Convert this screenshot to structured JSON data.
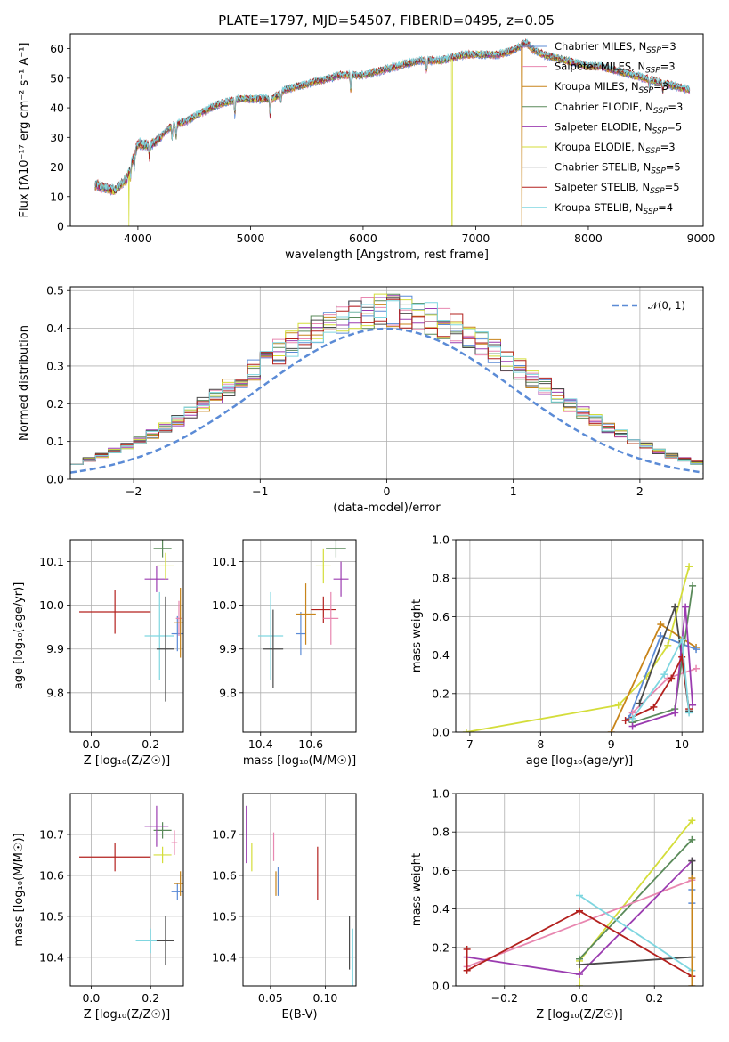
{
  "page_title": "PLATE=1797, MJD=54507, FIBERID=0495, z=0.05",
  "colors": {
    "c1": "#5b8bd6",
    "c2": "#e887b0",
    "c3": "#c8841a",
    "c4": "#5a8a5a",
    "c5": "#9b3cb0",
    "c6": "#d4dd3a",
    "c7": "#4a4a4a",
    "c8": "#b3211e",
    "c9": "#7fd6e0"
  },
  "chart_data": [
    {
      "id": "spectrum",
      "type": "line",
      "title": "PLATE=1797, MJD=54507, FIBERID=0495, z=0.05",
      "xlabel": "wavelength [Angstrom, rest frame]",
      "ylabel": "Flux [fλ10⁻¹⁷ erg cm⁻² s⁻¹ A⁻¹]",
      "xlim": [
        3400,
        9020
      ],
      "ylim": [
        0,
        65
      ],
      "xticks": [
        4000,
        5000,
        6000,
        7000,
        8000,
        9000
      ],
      "yticks": [
        0,
        10,
        20,
        30,
        40,
        50,
        60
      ],
      "grid": false,
      "legend_position": "top-right",
      "legend": [
        {
          "label": "Chabrier MILES, N",
          "sub": "SSP",
          "suffix": "=3",
          "color_key": "c1"
        },
        {
          "label": "Salpeter MILES, N",
          "sub": "SSP",
          "suffix": "=3",
          "color_key": "c2"
        },
        {
          "label": "Kroupa MILES, N",
          "sub": "SSP",
          "suffix": "=3",
          "color_key": "c3"
        },
        {
          "label": "Chabrier ELODIE, N",
          "sub": "SSP",
          "suffix": "=3",
          "color_key": "c4"
        },
        {
          "label": "Salpeter ELODIE, N",
          "sub": "SSP",
          "suffix": "=5",
          "color_key": "c5"
        },
        {
          "label": "Kroupa ELODIE, N",
          "sub": "SSP",
          "suffix": "=3",
          "color_key": "c6"
        },
        {
          "label": "Chabrier STELIB, N",
          "sub": "SSP",
          "suffix": "=5",
          "color_key": "c7"
        },
        {
          "label": "Salpeter STELIB, N",
          "sub": "SSP",
          "suffix": "=5",
          "color_key": "c8"
        },
        {
          "label": "Kroupa STELIB, N",
          "sub": "SSP",
          "suffix": "=4",
          "color_key": "c9"
        }
      ],
      "continuum": [
        [
          3620,
          14
        ],
        [
          3700,
          13
        ],
        [
          3800,
          12
        ],
        [
          3900,
          16
        ],
        [
          3950,
          22
        ],
        [
          4000,
          28
        ],
        [
          4100,
          27
        ],
        [
          4200,
          30
        ],
        [
          4300,
          34
        ],
        [
          4400,
          35
        ],
        [
          4500,
          37
        ],
        [
          4600,
          39
        ],
        [
          4700,
          41
        ],
        [
          4800,
          42
        ],
        [
          4900,
          43
        ],
        [
          5000,
          43
        ],
        [
          5100,
          43
        ],
        [
          5200,
          43
        ],
        [
          5300,
          46
        ],
        [
          5400,
          47
        ],
        [
          5500,
          48
        ],
        [
          5600,
          49
        ],
        [
          5700,
          50
        ],
        [
          5800,
          51
        ],
        [
          5900,
          51
        ],
        [
          6000,
          51
        ],
        [
          6100,
          52
        ],
        [
          6200,
          53
        ],
        [
          6300,
          54
        ],
        [
          6400,
          55
        ],
        [
          6500,
          56
        ],
        [
          6600,
          56
        ],
        [
          6700,
          56
        ],
        [
          6800,
          57
        ],
        [
          6900,
          58
        ],
        [
          7000,
          58
        ],
        [
          7100,
          58
        ],
        [
          7200,
          58
        ],
        [
          7300,
          59
        ],
        [
          7400,
          61
        ],
        [
          7450,
          62
        ],
        [
          7500,
          60
        ],
        [
          7600,
          58
        ],
        [
          7700,
          57
        ],
        [
          7800,
          56
        ],
        [
          7900,
          55
        ],
        [
          8000,
          54
        ],
        [
          8100,
          54
        ],
        [
          8200,
          53
        ],
        [
          8300,
          52
        ],
        [
          8400,
          51
        ],
        [
          8500,
          50
        ],
        [
          8600,
          49
        ],
        [
          8700,
          48
        ],
        [
          8800,
          47
        ],
        [
          8900,
          46
        ]
      ],
      "absorption_features": [
        [
          3934,
          4
        ],
        [
          3968,
          4
        ],
        [
          4102,
          4
        ],
        [
          4304,
          5
        ],
        [
          4340,
          4
        ],
        [
          4861,
          5
        ],
        [
          5175,
          6
        ],
        [
          5270,
          3
        ],
        [
          5890,
          5
        ],
        [
          6563,
          4
        ],
        [
          8542,
          3
        ],
        [
          8662,
          3
        ]
      ],
      "dropouts": [
        {
          "x": 3920,
          "color_key": "c6",
          "to": 0
        },
        {
          "x": 6790,
          "color_key": "c6",
          "to": 0
        },
        {
          "x": 7410,
          "color_key": "c3",
          "to": 0
        }
      ]
    },
    {
      "id": "residuals",
      "type": "histogram",
      "xlabel": "(data-model)/error",
      "ylabel": "Normed distribution",
      "xlim": [
        -2.5,
        2.5
      ],
      "ylim": [
        0,
        0.51
      ],
      "xticks": [
        -2,
        -1,
        0,
        1,
        2
      ],
      "yticks": [
        0.0,
        0.1,
        0.2,
        0.3,
        0.4,
        0.5
      ],
      "grid": true,
      "legend_position": "top-right",
      "legend": [
        {
          "label": "𝒩(0, 1)",
          "color_key": "c1",
          "dashed": true
        }
      ],
      "bin_width": 0.1
    },
    {
      "id": "age-vs-z",
      "type": "errorbar",
      "xlabel": "Z [log₁₀(Z/Z☉)]",
      "ylabel": "age  [log₁₀(age/yr)]",
      "xlim": [
        -0.07,
        0.31
      ],
      "ylim": [
        9.71,
        10.15
      ],
      "xticks": [
        0.0,
        0.2
      ],
      "yticks": [
        9.8,
        9.9,
        10.0,
        10.1
      ],
      "grid": true,
      "points": [
        {
          "color_key": "c8",
          "x": 0.08,
          "xerr": 0.12,
          "y": 9.985,
          "yerr": 0.05
        },
        {
          "color_key": "c9",
          "x": 0.23,
          "xerr": 0.05,
          "y": 9.93,
          "yerr": 0.1
        },
        {
          "color_key": "c7",
          "x": 0.25,
          "xerr": 0.03,
          "y": 9.9,
          "yerr": 0.12
        },
        {
          "color_key": "c1",
          "x": 0.29,
          "xerr": 0.02,
          "y": 9.935,
          "yerr": 0.04
        },
        {
          "color_key": "c2",
          "x": 0.295,
          "xerr": 0.01,
          "y": 9.97,
          "yerr": 0.04
        },
        {
          "color_key": "c3",
          "x": 0.3,
          "xerr": 0.02,
          "y": 9.96,
          "yerr": 0.08
        },
        {
          "color_key": "c5",
          "x": 0.22,
          "xerr": 0.04,
          "y": 10.06,
          "yerr": 0.03
        },
        {
          "color_key": "c6",
          "x": 0.25,
          "xerr": 0.03,
          "y": 10.09,
          "yerr": 0.03
        },
        {
          "color_key": "c4",
          "x": 0.24,
          "xerr": 0.03,
          "y": 10.13,
          "yerr": 0.02
        }
      ]
    },
    {
      "id": "age-vs-mass",
      "type": "errorbar",
      "xlabel": "mass [log₁₀(M/M☉)]",
      "ylabel": "",
      "xlim": [
        10.33,
        10.78
      ],
      "ylim": [
        9.71,
        10.15
      ],
      "xticks": [
        10.4,
        10.6
      ],
      "yticks": [
        9.8,
        9.9,
        10.0,
        10.1
      ],
      "grid": true,
      "points": [
        {
          "color_key": "c9",
          "x": 10.44,
          "xerr": 0.05,
          "y": 9.93,
          "yerr": 0.1
        },
        {
          "color_key": "c7",
          "x": 10.45,
          "xerr": 0.04,
          "y": 9.9,
          "yerr": 0.09
        },
        {
          "color_key": "c1",
          "x": 10.56,
          "xerr": 0.02,
          "y": 9.935,
          "yerr": 0.05
        },
        {
          "color_key": "c3",
          "x": 10.58,
          "xerr": 0.04,
          "y": 9.98,
          "yerr": 0.07
        },
        {
          "color_key": "c8",
          "x": 10.65,
          "xerr": 0.05,
          "y": 9.99,
          "yerr": 0.03
        },
        {
          "color_key": "c2",
          "x": 10.68,
          "xerr": 0.03,
          "y": 9.97,
          "yerr": 0.06
        },
        {
          "color_key": "c6",
          "x": 10.65,
          "xerr": 0.03,
          "y": 10.09,
          "yerr": 0.04
        },
        {
          "color_key": "c4",
          "x": 10.7,
          "xerr": 0.04,
          "y": 10.13,
          "yerr": 0.02
        },
        {
          "color_key": "c5",
          "x": 10.72,
          "xerr": 0.03,
          "y": 10.06,
          "yerr": 0.04
        }
      ]
    },
    {
      "id": "weight-vs-age",
      "type": "line",
      "xlabel": "age  [log₁₀(age/yr)]",
      "ylabel": "mass weight",
      "xlim": [
        6.8,
        10.3
      ],
      "ylim": [
        0,
        1.0
      ],
      "xticks": [
        7,
        8,
        9,
        10
      ],
      "yticks": [
        0.0,
        0.2,
        0.4,
        0.6,
        0.8,
        1.0
      ],
      "grid": true,
      "series": [
        {
          "color_key": "c6",
          "points": [
            [
              6.95,
              0.0
            ],
            [
              9.1,
              0.14
            ],
            [
              9.5,
              0.29
            ],
            [
              9.8,
              0.45
            ],
            [
              10.1,
              0.86
            ]
          ]
        },
        {
          "color_key": "c3",
          "points": [
            [
              9.0,
              0.0
            ],
            [
              9.7,
              0.56
            ],
            [
              10.2,
              0.44
            ]
          ]
        },
        {
          "color_key": "c1",
          "points": [
            [
              9.25,
              0.07
            ],
            [
              9.7,
              0.5
            ],
            [
              10.2,
              0.43
            ]
          ]
        },
        {
          "color_key": "c2",
          "points": [
            [
              9.3,
              0.1
            ],
            [
              9.8,
              0.28
            ],
            [
              10.2,
              0.33
            ]
          ]
        },
        {
          "color_key": "c4",
          "points": [
            [
              9.3,
              0.05
            ],
            [
              9.9,
              0.12
            ],
            [
              10.15,
              0.76
            ]
          ]
        },
        {
          "color_key": "c7",
          "points": [
            [
              9.4,
              0.15
            ],
            [
              9.9,
              0.65
            ],
            [
              10.1,
              0.11
            ]
          ]
        },
        {
          "color_key": "c5",
          "points": [
            [
              9.3,
              0.03
            ],
            [
              9.9,
              0.1
            ],
            [
              10.05,
              0.65
            ],
            [
              10.15,
              0.14
            ]
          ]
        },
        {
          "color_key": "c8",
          "points": [
            [
              9.2,
              0.06
            ],
            [
              9.6,
              0.13
            ],
            [
              9.85,
              0.28
            ],
            [
              10.0,
              0.39
            ],
            [
              10.1,
              0.12
            ]
          ]
        },
        {
          "color_key": "c9",
          "points": [
            [
              9.3,
              0.07
            ],
            [
              9.75,
              0.3
            ],
            [
              10.0,
              0.48
            ],
            [
              10.1,
              0.1
            ]
          ]
        }
      ]
    },
    {
      "id": "mass-vs-z",
      "type": "errorbar",
      "xlabel": "Z [log₁₀(Z/Z☉)]",
      "ylabel": "mass [log₁₀(M/M☉)]",
      "xlim": [
        -0.07,
        0.31
      ],
      "ylim": [
        10.33,
        10.8
      ],
      "xticks": [
        0.0,
        0.2
      ],
      "yticks": [
        10.4,
        10.5,
        10.6,
        10.7
      ],
      "grid": true,
      "points": [
        {
          "color_key": "c8",
          "x": 0.08,
          "xerr": 0.12,
          "y": 10.645,
          "yerr": 0.035
        },
        {
          "color_key": "c9",
          "x": 0.2,
          "xerr": 0.05,
          "y": 10.44,
          "yerr": 0.03
        },
        {
          "color_key": "c7",
          "x": 0.25,
          "xerr": 0.03,
          "y": 10.44,
          "yerr": 0.06
        },
        {
          "color_key": "c1",
          "x": 0.29,
          "xerr": 0.02,
          "y": 10.56,
          "yerr": 0.02
        },
        {
          "color_key": "c3",
          "x": 0.3,
          "xerr": 0.02,
          "y": 10.58,
          "yerr": 0.03
        },
        {
          "color_key": "c2",
          "x": 0.28,
          "xerr": 0.01,
          "y": 10.68,
          "yerr": 0.03
        },
        {
          "color_key": "c6",
          "x": 0.24,
          "xerr": 0.03,
          "y": 10.65,
          "yerr": 0.02
        },
        {
          "color_key": "c4",
          "x": 0.24,
          "xerr": 0.03,
          "y": 10.71,
          "yerr": 0.02
        },
        {
          "color_key": "c5",
          "x": 0.22,
          "xerr": 0.04,
          "y": 10.72,
          "yerr": 0.05
        }
      ]
    },
    {
      "id": "mass-vs-ebv",
      "type": "errorbar",
      "xlabel": "E(B-V)",
      "ylabel": "",
      "xlim": [
        0.025,
        0.128
      ],
      "ylim": [
        10.33,
        10.8
      ],
      "xticks": [
        0.05,
        0.1
      ],
      "yticks": [
        10.4,
        10.5,
        10.6,
        10.7
      ],
      "grid": true,
      "points": [
        {
          "color_key": "c5",
          "x": 0.028,
          "xerr": 0,
          "y": 10.7,
          "yerr": 0.07
        },
        {
          "color_key": "c6",
          "x": 0.033,
          "xerr": 0,
          "y": 10.645,
          "yerr": 0.035
        },
        {
          "color_key": "c2",
          "x": 0.053,
          "xerr": 0,
          "y": 10.67,
          "yerr": 0.035
        },
        {
          "color_key": "c3",
          "x": 0.055,
          "xerr": 0,
          "y": 10.58,
          "yerr": 0.03
        },
        {
          "color_key": "c1",
          "x": 0.057,
          "xerr": 0,
          "y": 10.585,
          "yerr": 0.035
        },
        {
          "color_key": "c8",
          "x": 0.093,
          "xerr": 0,
          "y": 10.605,
          "yerr": 0.065
        },
        {
          "color_key": "c7",
          "x": 0.122,
          "xerr": 0,
          "y": 10.435,
          "yerr": 0.065
        },
        {
          "color_key": "c9",
          "x": 0.125,
          "xerr": 0,
          "y": 10.4,
          "yerr": 0.07
        }
      ]
    },
    {
      "id": "weight-vs-z",
      "type": "line",
      "xlabel": "Z [log₁₀(Z/Z☉)]",
      "ylabel": "mass weight",
      "xlim": [
        -0.33,
        0.33
      ],
      "ylim": [
        0,
        1.0
      ],
      "xticks": [
        -0.2,
        0.0,
        0.2
      ],
      "yticks": [
        0.0,
        0.2,
        0.4,
        0.6,
        0.8,
        1.0
      ],
      "grid": true,
      "series": [
        {
          "color_key": "c6",
          "points": [
            [
              0.0,
              0.0
            ],
            [
              0.0,
              0.13
            ],
            [
              0.3,
              0.86
            ]
          ]
        },
        {
          "color_key": "c4",
          "points": [
            [
              0.0,
              0.14
            ],
            [
              0.3,
              0.76
            ]
          ]
        },
        {
          "color_key": "c2",
          "points": [
            [
              -0.3,
              0.1
            ],
            [
              0.3,
              0.55
            ]
          ]
        },
        {
          "color_key": "c5",
          "points": [
            [
              -0.3,
              0.15
            ],
            [
              0.0,
              0.06
            ],
            [
              0.3,
              0.65
            ]
          ]
        },
        {
          "color_key": "c7",
          "points": [
            [
              0.0,
              0.11
            ],
            [
              0.3,
              0.15
            ],
            [
              0.3,
              0.65
            ]
          ]
        },
        {
          "color_key": "c8",
          "points": [
            [
              -0.3,
              0.19
            ],
            [
              -0.3,
              0.08
            ],
            [
              0.0,
              0.39
            ],
            [
              0.3,
              0.05
            ]
          ]
        },
        {
          "color_key": "c9",
          "points": [
            [
              0.0,
              0.47
            ],
            [
              0.3,
              0.08
            ]
          ]
        },
        {
          "color_key": "c1",
          "points": [
            [
              0.3,
              0.5
            ],
            [
              0.3,
              0.43
            ]
          ]
        },
        {
          "color_key": "c3",
          "points": [
            [
              0.3,
              0.56
            ],
            [
              0.3,
              0.0
            ]
          ]
        }
      ]
    }
  ]
}
